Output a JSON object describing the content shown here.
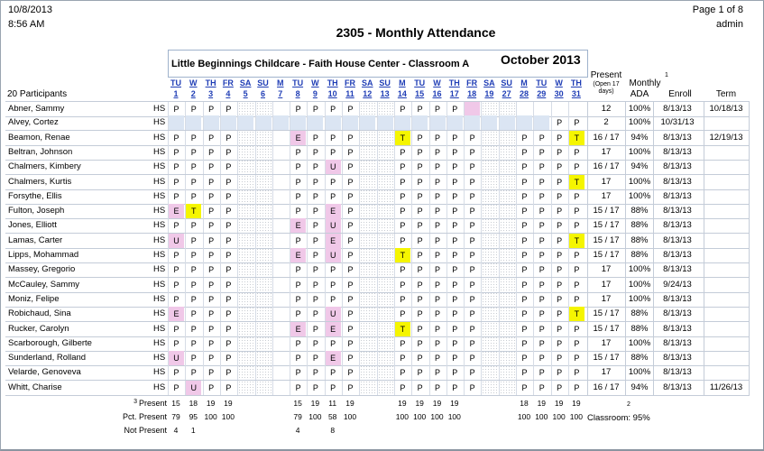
{
  "header": {
    "date": "10/8/2013",
    "time": "8:56 AM",
    "page": "Page 1 of 8",
    "user": "admin",
    "title": "2305 - Monthly Attendance",
    "center": "Little Beginnings Childcare - Faith House Center - Classroom A",
    "month": "October 2013"
  },
  "columns": {
    "participants": "20 Participants",
    "present": "Present",
    "present_sub1": "(Open 17",
    "present_sub2": "days)",
    "monthly": "Monthly",
    "ada": "ADA",
    "enroll": "Enroll",
    "enroll_note": "1",
    "term": "Term"
  },
  "days": [
    {
      "dow": "TU",
      "d": "1"
    },
    {
      "dow": "W",
      "d": "2"
    },
    {
      "dow": "TH",
      "d": "3"
    },
    {
      "dow": "FR",
      "d": "4"
    },
    {
      "dow": "SA",
      "d": "5"
    },
    {
      "dow": "SU",
      "d": "6"
    },
    {
      "dow": "M",
      "d": "7"
    },
    {
      "dow": "TU",
      "d": "8"
    },
    {
      "dow": "W",
      "d": "9"
    },
    {
      "dow": "TH",
      "d": "10"
    },
    {
      "dow": "FR",
      "d": "11"
    },
    {
      "dow": "SA",
      "d": "12"
    },
    {
      "dow": "SU",
      "d": "13"
    },
    {
      "dow": "M",
      "d": "14"
    },
    {
      "dow": "TU",
      "d": "15"
    },
    {
      "dow": "W",
      "d": "16"
    },
    {
      "dow": "TH",
      "d": "17"
    },
    {
      "dow": "FR",
      "d": "18"
    },
    {
      "dow": "SA",
      "d": "19"
    },
    {
      "dow": "SU",
      "d": "20"
    },
    {
      "dow": "M",
      "d": "21"
    },
    {
      "dow": "TU",
      "d": "22"
    },
    {
      "dow": "W",
      "d": "23"
    },
    {
      "dow": "TH",
      "d": "24"
    },
    {
      "dow": "FR",
      "d": "25"
    },
    {
      "dow": "SA",
      "d": "26"
    },
    {
      "dow": "SU",
      "d": "27"
    },
    {
      "dow": "M",
      "d": "28"
    },
    {
      "dow": "TU",
      "d": "29"
    },
    {
      "dow": "W",
      "d": "30"
    },
    {
      "dow": "TH",
      "d": "31"
    }
  ],
  "visible_day_labels": [
    {
      "dow": "TU",
      "d": "1"
    },
    {
      "dow": "W",
      "d": "2"
    },
    {
      "dow": "TH",
      "d": "3"
    },
    {
      "dow": "FR",
      "d": "4"
    },
    {
      "dow": "SA",
      "d": "5"
    },
    {
      "dow": "SU",
      "d": "6"
    },
    {
      "dow": "M",
      "d": "7"
    },
    {
      "dow": "TU",
      "d": "8"
    },
    {
      "dow": "W",
      "d": "9"
    },
    {
      "dow": "TH",
      "d": "10"
    },
    {
      "dow": "SA",
      "d": "12"
    },
    {
      "dow": "SU",
      "d": "13"
    },
    {
      "dow": "M",
      "d": "14"
    },
    {
      "dow": "TU",
      "d": "15"
    },
    {
      "dow": "W",
      "d": "16"
    },
    {
      "dow": "TH",
      "d": "17"
    },
    {
      "dow": "FR",
      "d": "18"
    },
    {
      "dow": "SA",
      "d": "19"
    },
    {
      "dow": "SU",
      "d": "27"
    },
    {
      "dow": "M",
      "d": "28"
    },
    {
      "dow": "TU",
      "d": "29"
    },
    {
      "dow": "W",
      "d": "30"
    },
    {
      "dow": "TH",
      "d": "31"
    }
  ],
  "participants": [
    {
      "name": "Abner, Sammy",
      "prog": "HS",
      "marks": [
        "P",
        "P",
        "P",
        "P",
        "",
        "",
        "",
        "P",
        "P",
        "P",
        "P",
        "",
        "",
        "P",
        "P",
        "P",
        "P",
        "*",
        "",
        "",
        "",
        "",
        "",
        "",
        "",
        "",
        "",
        "",
        "",
        "",
        ""
      ],
      "present": "12",
      "ada": "100%",
      "enroll": "8/13/13",
      "term": "10/18/13"
    },
    {
      "name": "Alvey, Cortez",
      "prog": "HS",
      "marks": [
        "",
        "",
        "",
        "",
        "",
        "",
        "",
        "",
        "",
        "",
        "",
        "",
        "",
        "",
        "",
        "",
        "",
        "",
        "",
        "",
        "",
        "",
        "",
        "",
        "",
        "",
        "",
        "",
        "",
        "P",
        "P"
      ],
      "present": "2",
      "ada": "100%",
      "enroll": "10/31/13",
      "term": "",
      "unenrolled_until": 29
    },
    {
      "name": "Beamon, Renae",
      "prog": "HS",
      "marks": [
        "P",
        "P",
        "P",
        "P",
        "",
        "",
        "",
        "E",
        "P",
        "P",
        "P",
        "",
        "",
        "T",
        "P",
        "P",
        "P",
        "P",
        "",
        "",
        "",
        "",
        "",
        "",
        "",
        "",
        "",
        "P",
        "P",
        "P",
        "T"
      ],
      "present": "16 / 17",
      "ada": "94%",
      "enroll": "8/13/13",
      "term": "12/19/13"
    },
    {
      "name": "Beltran, Johnson",
      "prog": "HS",
      "marks": [
        "P",
        "P",
        "P",
        "P",
        "",
        "",
        "",
        "P",
        "P",
        "P",
        "P",
        "",
        "",
        "P",
        "P",
        "P",
        "P",
        "P",
        "",
        "",
        "",
        "",
        "",
        "",
        "",
        "",
        "",
        "P",
        "P",
        "P",
        "P"
      ],
      "present": "17",
      "ada": "100%",
      "enroll": "8/13/13",
      "term": ""
    },
    {
      "name": "Chalmers, Kimbery",
      "prog": "HS",
      "marks": [
        "P",
        "P",
        "P",
        "P",
        "",
        "",
        "",
        "P",
        "P",
        "U",
        "P",
        "",
        "",
        "P",
        "P",
        "P",
        "P",
        "P",
        "",
        "",
        "",
        "",
        "",
        "",
        "",
        "",
        "",
        "P",
        "P",
        "P",
        "P"
      ],
      "present": "16 / 17",
      "ada": "94%",
      "enroll": "8/13/13",
      "term": ""
    },
    {
      "name": "Chalmers, Kurtis",
      "prog": "HS",
      "marks": [
        "P",
        "P",
        "P",
        "P",
        "",
        "",
        "",
        "P",
        "P",
        "P",
        "P",
        "",
        "",
        "P",
        "P",
        "P",
        "P",
        "P",
        "",
        "",
        "",
        "",
        "",
        "",
        "",
        "",
        "",
        "P",
        "P",
        "P",
        "T"
      ],
      "present": "17",
      "ada": "100%",
      "enroll": "8/13/13",
      "term": ""
    },
    {
      "name": "Forsythe, Ellis",
      "prog": "HS",
      "marks": [
        "P",
        "P",
        "P",
        "P",
        "",
        "",
        "",
        "P",
        "P",
        "P",
        "P",
        "",
        "",
        "P",
        "P",
        "P",
        "P",
        "P",
        "",
        "",
        "",
        "",
        "",
        "",
        "",
        "",
        "",
        "P",
        "P",
        "P",
        "P"
      ],
      "present": "17",
      "ada": "100%",
      "enroll": "8/13/13",
      "term": ""
    },
    {
      "name": "Fulton, Joseph",
      "prog": "HS",
      "marks": [
        "E",
        "T",
        "P",
        "P",
        "",
        "",
        "",
        "P",
        "P",
        "E",
        "P",
        "",
        "",
        "P",
        "P",
        "P",
        "P",
        "P",
        "",
        "",
        "",
        "",
        "",
        "",
        "",
        "",
        "",
        "P",
        "P",
        "P",
        "P"
      ],
      "present": "15 / 17",
      "ada": "88%",
      "enroll": "8/13/13",
      "term": ""
    },
    {
      "name": "Jones, Elliott",
      "prog": "HS",
      "marks": [
        "P",
        "P",
        "P",
        "P",
        "",
        "",
        "",
        "E",
        "P",
        "U",
        "P",
        "",
        "",
        "P",
        "P",
        "P",
        "P",
        "P",
        "",
        "",
        "",
        "",
        "",
        "",
        "",
        "",
        "",
        "P",
        "P",
        "P",
        "P"
      ],
      "present": "15 / 17",
      "ada": "88%",
      "enroll": "8/13/13",
      "term": ""
    },
    {
      "name": "Lamas, Carter",
      "prog": "HS",
      "marks": [
        "U",
        "P",
        "P",
        "P",
        "",
        "",
        "",
        "P",
        "P",
        "E",
        "P",
        "",
        "",
        "P",
        "P",
        "P",
        "P",
        "P",
        "",
        "",
        "",
        "",
        "",
        "",
        "",
        "",
        "",
        "P",
        "P",
        "P",
        "T"
      ],
      "present": "15 / 17",
      "ada": "88%",
      "enroll": "8/13/13",
      "term": ""
    },
    {
      "name": "Lipps, Mohammad",
      "prog": "HS",
      "marks": [
        "P",
        "P",
        "P",
        "P",
        "",
        "",
        "",
        "E",
        "P",
        "U",
        "P",
        "",
        "",
        "T",
        "P",
        "P",
        "P",
        "P",
        "",
        "",
        "",
        "",
        "",
        "",
        "",
        "",
        "",
        "P",
        "P",
        "P",
        "P"
      ],
      "present": "15 / 17",
      "ada": "88%",
      "enroll": "8/13/13",
      "term": ""
    },
    {
      "name": "Massey, Gregorio",
      "prog": "HS",
      "marks": [
        "P",
        "P",
        "P",
        "P",
        "",
        "",
        "",
        "P",
        "P",
        "P",
        "P",
        "",
        "",
        "P",
        "P",
        "P",
        "P",
        "P",
        "",
        "",
        "",
        "",
        "",
        "",
        "",
        "",
        "",
        "P",
        "P",
        "P",
        "P"
      ],
      "present": "17",
      "ada": "100%",
      "enroll": "8/13/13",
      "term": ""
    },
    {
      "name": "McCauley, Sammy",
      "prog": "HS",
      "marks": [
        "P",
        "P",
        "P",
        "P",
        "",
        "",
        "",
        "P",
        "P",
        "P",
        "P",
        "",
        "",
        "P",
        "P",
        "P",
        "P",
        "P",
        "",
        "",
        "",
        "",
        "",
        "",
        "",
        "",
        "",
        "P",
        "P",
        "P",
        "P"
      ],
      "present": "17",
      "ada": "100%",
      "enroll": "9/24/13",
      "term": ""
    },
    {
      "name": "Moniz, Felipe",
      "prog": "HS",
      "marks": [
        "P",
        "P",
        "P",
        "P",
        "",
        "",
        "",
        "P",
        "P",
        "P",
        "P",
        "",
        "",
        "P",
        "P",
        "P",
        "P",
        "P",
        "",
        "",
        "",
        "",
        "",
        "",
        "",
        "",
        "",
        "P",
        "P",
        "P",
        "P"
      ],
      "present": "17",
      "ada": "100%",
      "enroll": "8/13/13",
      "term": ""
    },
    {
      "name": "Robichaud, Sina",
      "prog": "HS",
      "marks": [
        "E",
        "P",
        "P",
        "P",
        "",
        "",
        "",
        "P",
        "P",
        "U",
        "P",
        "",
        "",
        "P",
        "P",
        "P",
        "P",
        "P",
        "",
        "",
        "",
        "",
        "",
        "",
        "",
        "",
        "",
        "P",
        "P",
        "P",
        "T"
      ],
      "present": "15 / 17",
      "ada": "88%",
      "enroll": "8/13/13",
      "term": ""
    },
    {
      "name": "Rucker, Carolyn",
      "prog": "HS",
      "marks": [
        "P",
        "P",
        "P",
        "P",
        "",
        "",
        "",
        "E",
        "P",
        "E",
        "P",
        "",
        "",
        "T",
        "P",
        "P",
        "P",
        "P",
        "",
        "",
        "",
        "",
        "",
        "",
        "",
        "",
        "",
        "P",
        "P",
        "P",
        "P"
      ],
      "present": "15 / 17",
      "ada": "88%",
      "enroll": "8/13/13",
      "term": ""
    },
    {
      "name": "Scarborough, Gilberte",
      "prog": "HS",
      "marks": [
        "P",
        "P",
        "P",
        "P",
        "",
        "",
        "",
        "P",
        "P",
        "P",
        "P",
        "",
        "",
        "P",
        "P",
        "P",
        "P",
        "P",
        "",
        "",
        "",
        "",
        "",
        "",
        "",
        "",
        "",
        "P",
        "P",
        "P",
        "P"
      ],
      "present": "17",
      "ada": "100%",
      "enroll": "8/13/13",
      "term": ""
    },
    {
      "name": "Sunderland, Rolland",
      "prog": "HS",
      "marks": [
        "U",
        "P",
        "P",
        "P",
        "",
        "",
        "",
        "P",
        "P",
        "E",
        "P",
        "",
        "",
        "P",
        "P",
        "P",
        "P",
        "P",
        "",
        "",
        "",
        "",
        "",
        "",
        "",
        "",
        "",
        "P",
        "P",
        "P",
        "P"
      ],
      "present": "15 / 17",
      "ada": "88%",
      "enroll": "8/13/13",
      "term": ""
    },
    {
      "name": "Velarde, Genoveva",
      "prog": "HS",
      "marks": [
        "P",
        "P",
        "P",
        "P",
        "",
        "",
        "",
        "P",
        "P",
        "P",
        "P",
        "",
        "",
        "P",
        "P",
        "P",
        "P",
        "P",
        "",
        "",
        "",
        "",
        "",
        "",
        "",
        "",
        "",
        "P",
        "P",
        "P",
        "P"
      ],
      "present": "17",
      "ada": "100%",
      "enroll": "8/13/13",
      "term": ""
    },
    {
      "name": "Whitt, Charise",
      "prog": "HS",
      "marks": [
        "P",
        "U",
        "P",
        "P",
        "",
        "",
        "",
        "P",
        "P",
        "P",
        "P",
        "",
        "",
        "P",
        "P",
        "P",
        "P",
        "P",
        "",
        "",
        "",
        "",
        "",
        "",
        "",
        "",
        "",
        "P",
        "P",
        "P",
        "P"
      ],
      "present": "16 / 17",
      "ada": "94%",
      "enroll": "8/13/13",
      "term": "11/26/13"
    }
  ],
  "totals": {
    "present_label": "Present",
    "present_note": "3",
    "pct_label": "Pct. Present",
    "not_label": "Not Present",
    "present": [
      "15",
      "18",
      "19",
      "19",
      "",
      "",
      "",
      "15",
      "19",
      "11",
      "19",
      "",
      "",
      "19",
      "19",
      "19",
      "19",
      "",
      "",
      "",
      "",
      "",
      "",
      "",
      "",
      "",
      "",
      "18",
      "19",
      "19",
      "19"
    ],
    "pct": [
      "79",
      "95",
      "100",
      "100",
      "",
      "",
      "",
      "79",
      "100",
      "58",
      "100",
      "",
      "",
      "100",
      "100",
      "100",
      "100",
      "",
      "",
      "",
      "",
      "",
      "",
      "",
      "",
      "",
      "",
      "100",
      "100",
      "100",
      "100"
    ],
    "not": [
      "4",
      "1",
      "",
      "",
      "",
      "",
      "",
      "4",
      "",
      "8",
      "",
      "",
      "",
      "",
      "",
      "",
      "",
      "",
      "",
      "",
      "",
      "",
      "",
      "",
      "",
      "",
      "",
      "",
      "",
      "",
      ""
    ],
    "classroom_note": "2",
    "classroom": "Classroom: 95%"
  }
}
